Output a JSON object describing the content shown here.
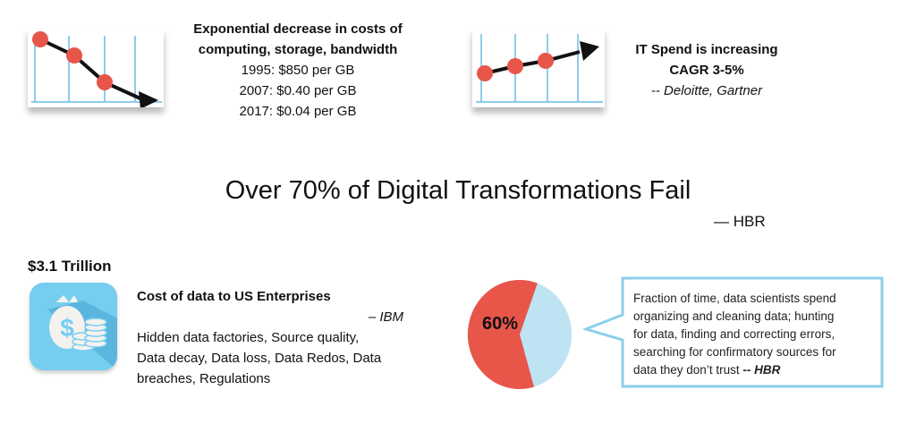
{
  "costs_block": {
    "title_line1": "Exponential decrease in costs of",
    "title_line2": "computing, storage, bandwidth",
    "lines": [
      "1995: $850 per GB",
      "2007: $0.40 per GB",
      "2017: $0.04 per GB"
    ]
  },
  "spend_block": {
    "title_line1": "IT Spend is increasing",
    "title_line2": "CAGR 3-5%",
    "source": "-- Deloitte, Gartner"
  },
  "headline": {
    "text": "Over 70% of Digital Transformations Fail",
    "source": "— HBR"
  },
  "data_cost_block": {
    "amount": "$3.1 Trillion",
    "title": "Cost of data to US Enterprises",
    "source": "– IBM",
    "body_lines": [
      "Hidden data factories, Source quality,",
      "Data decay, Data loss, Data Redos, Data",
      "breaches, Regulations"
    ]
  },
  "time_block": {
    "percent_label": "60%",
    "fraction": 0.6,
    "bubble_lines": [
      "Fraction of time, data scientists spend",
      "organizing and cleaning  data; hunting",
      "for data, finding and correcting errors,",
      "searching for confirmatory sources for"
    ],
    "bubble_last_line": "data they don’t trust",
    "bubble_source": "-- HBR"
  },
  "colors": {
    "accent_red": "#E8564A",
    "pie_light_blue": "#BEE3F2",
    "icon_blue": "#76CDF0",
    "bubble_border": "#8CCFEA",
    "grid_blue": "#8DCDEB"
  },
  "icons": {
    "money_icon": "money-bag-coins-icon"
  }
}
